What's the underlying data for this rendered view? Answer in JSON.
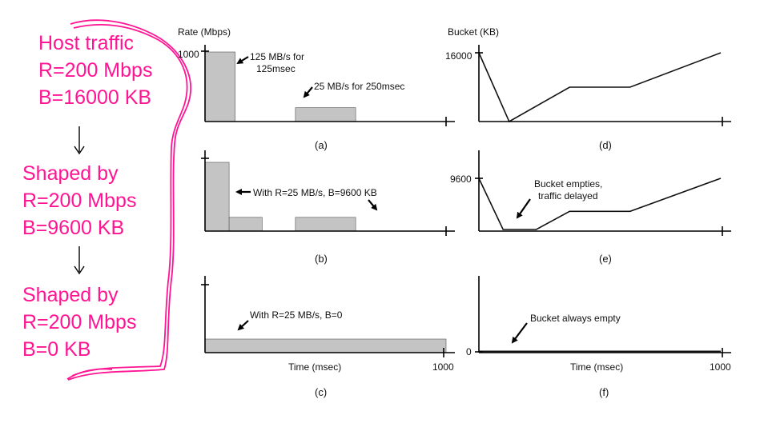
{
  "annotation": {
    "host_traffic": [
      "Host traffic",
      "R=200 Mbps",
      "B=16000 KB"
    ],
    "shaped_1": [
      "Shaped by",
      "R=200 Mbps",
      "B=9600 KB"
    ],
    "shaped_2": [
      "Shaped by",
      "R=200 Mbps",
      "B=0 KB"
    ],
    "color": "#ff1493"
  },
  "panels": {
    "a": {
      "label": "(a)",
      "ylabel": "Rate (Mbps)",
      "ytick": "1000",
      "note1": [
        "125 MB/s for",
        "125msec"
      ],
      "note2": "25 MB/s for 250msec"
    },
    "b": {
      "label": "(b)",
      "note": "With R=25 MB/s, B=9600 KB"
    },
    "c": {
      "label": "(c)",
      "note": "With R=25 MB/s, B=0",
      "xlabel": "Time (msec)",
      "xtick": "1000"
    },
    "d": {
      "label": "(d)",
      "ylabel": "Bucket (KB)",
      "ytick": "16000"
    },
    "e": {
      "label": "(e)",
      "ytick": "9600",
      "note": [
        "Bucket empties,",
        "traffic delayed"
      ]
    },
    "f": {
      "label": "(f)",
      "ytick": "0",
      "note": "Bucket always empty",
      "xlabel": "Time (msec)",
      "xtick": "1000"
    }
  },
  "chart_data": {
    "time_range_msec": [
      0,
      1000
    ],
    "rate_ylim_mbps": [
      0,
      1000
    ],
    "rate_plots": [
      {
        "panel": "a",
        "segments": [
          {
            "start": 0,
            "end": 125,
            "rate": 1000
          },
          {
            "start": 375,
            "end": 625,
            "rate": 200
          }
        ]
      },
      {
        "panel": "b",
        "segments": [
          {
            "start": 0,
            "end": 100,
            "rate": 1000
          },
          {
            "start": 100,
            "end": 237,
            "rate": 200
          },
          {
            "start": 375,
            "end": 625,
            "rate": 200
          }
        ]
      },
      {
        "panel": "c",
        "segments": [
          {
            "start": 0,
            "end": 1000,
            "rate": 200
          }
        ]
      }
    ],
    "bucket_plots": [
      {
        "panel": "d",
        "ylim": [
          0,
          16000
        ],
        "points": [
          [
            0,
            16000
          ],
          [
            125,
            0
          ],
          [
            375,
            8000
          ],
          [
            625,
            8000
          ],
          [
            1000,
            16000
          ]
        ]
      },
      {
        "panel": "e",
        "ylim": [
          0,
          9600
        ],
        "points": [
          [
            0,
            9600
          ],
          [
            100,
            0
          ],
          [
            237,
            0
          ],
          [
            375,
            3400
          ],
          [
            625,
            3400
          ],
          [
            1000,
            9600
          ]
        ]
      },
      {
        "panel": "f",
        "ylim": [
          0,
          9600
        ],
        "points": [
          [
            0,
            0
          ],
          [
            1000,
            0
          ]
        ]
      }
    ]
  }
}
